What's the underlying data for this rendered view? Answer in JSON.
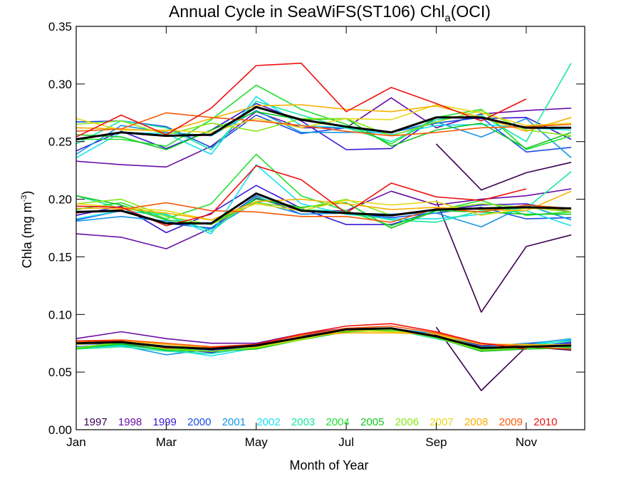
{
  "chart_data": {
    "type": "line",
    "title": {
      "main": "Annual Cycle in SeaWiFS(ST106) Chl",
      "sub": "a",
      "suffix": "(OCI)"
    },
    "xlabel": "Month of Year",
    "ylabel": {
      "main": "Chla (mg m",
      "sup": "-3",
      "suffix": ")"
    },
    "xlim": [
      1,
      12.3
    ],
    "ylim": [
      0,
      0.35
    ],
    "x_ticks": [
      {
        "value": 1,
        "label": "Jan"
      },
      {
        "value": 3,
        "label": "Mar"
      },
      {
        "value": 5,
        "label": "May"
      },
      {
        "value": 7,
        "label": "Jul"
      },
      {
        "value": 9,
        "label": "Sep"
      },
      {
        "value": 11,
        "label": "Nov"
      }
    ],
    "y_ticks": [
      {
        "value": 0.0,
        "label": "0.00"
      },
      {
        "value": 0.05,
        "label": "0.05"
      },
      {
        "value": 0.1,
        "label": "0.10"
      },
      {
        "value": 0.15,
        "label": "0.15"
      },
      {
        "value": 0.2,
        "label": "0.20"
      },
      {
        "value": 0.25,
        "label": "0.25"
      },
      {
        "value": 0.3,
        "label": "0.30"
      },
      {
        "value": 0.35,
        "label": "0.35"
      }
    ],
    "x": [
      1,
      2,
      3,
      4,
      5,
      6,
      7,
      8,
      9,
      10,
      11,
      12
    ],
    "grid": false,
    "legend_position": "bottom, inside plot",
    "series": [
      {
        "name": "1997",
        "color": "#3c0050",
        "upper": [
          null,
          null,
          null,
          null,
          null,
          null,
          null,
          null,
          0.248,
          0.208,
          0.223,
          0.232
        ],
        "middle": [
          null,
          null,
          null,
          null,
          null,
          null,
          null,
          null,
          0.199,
          0.102,
          0.159,
          0.169
        ],
        "lower": [
          null,
          null,
          null,
          null,
          null,
          null,
          null,
          null,
          0.089,
          0.034,
          0.072,
          0.069
        ]
      },
      {
        "name": "1998",
        "color": "#6a0ea8",
        "upper": [
          0.233,
          0.23,
          0.228,
          0.246,
          0.276,
          0.262,
          0.262,
          0.288,
          0.262,
          0.274,
          0.277,
          0.279
        ],
        "middle": [
          0.17,
          0.167,
          0.157,
          0.175,
          0.201,
          0.19,
          0.19,
          0.207,
          0.195,
          0.2,
          0.203,
          0.209
        ],
        "lower": [
          0.079,
          0.085,
          0.079,
          0.075,
          0.075,
          0.083,
          0.088,
          0.088,
          0.082,
          0.073,
          0.074,
          0.079
        ]
      },
      {
        "name": "1999",
        "color": "#3a16d8",
        "upper": [
          0.242,
          0.259,
          0.244,
          0.26,
          0.283,
          0.268,
          0.243,
          0.244,
          0.271,
          0.27,
          0.271,
          0.252
        ],
        "middle": [
          0.186,
          0.194,
          0.171,
          0.188,
          0.212,
          0.192,
          0.178,
          0.178,
          0.19,
          0.195,
          0.196,
          0.189
        ],
        "lower": [
          0.072,
          0.074,
          0.071,
          0.067,
          0.074,
          0.08,
          0.087,
          0.087,
          0.08,
          0.068,
          0.072,
          0.075
        ]
      },
      {
        "name": "2000",
        "color": "#1a4ee8",
        "upper": [
          0.267,
          0.268,
          0.263,
          0.245,
          0.273,
          0.257,
          0.262,
          0.258,
          0.266,
          0.271,
          0.241,
          0.245
        ],
        "middle": [
          0.182,
          0.19,
          0.179,
          0.175,
          0.203,
          0.187,
          0.188,
          0.184,
          0.188,
          0.193,
          0.183,
          0.184
        ],
        "lower": [
          0.074,
          0.075,
          0.072,
          0.069,
          0.072,
          0.081,
          0.087,
          0.087,
          0.081,
          0.07,
          0.071,
          0.076
        ]
      },
      {
        "name": "2001",
        "color": "#1496e8",
        "upper": [
          0.239,
          0.264,
          0.258,
          0.255,
          0.277,
          0.258,
          0.258,
          0.258,
          0.267,
          0.254,
          0.27,
          0.236
        ],
        "middle": [
          0.181,
          0.185,
          0.181,
          0.174,
          0.198,
          0.187,
          0.188,
          0.187,
          0.188,
          0.176,
          0.195,
          0.182
        ],
        "lower": [
          0.072,
          0.073,
          0.065,
          0.07,
          0.073,
          0.08,
          0.086,
          0.088,
          0.083,
          0.072,
          0.075,
          0.078
        ]
      },
      {
        "name": "2002",
        "color": "#18e0f0",
        "upper": [
          0.236,
          0.258,
          0.257,
          0.239,
          0.289,
          0.264,
          0.262,
          0.256,
          0.264,
          0.265,
          0.262,
          0.26
        ],
        "middle": [
          0.183,
          0.19,
          0.186,
          0.17,
          0.23,
          0.196,
          0.187,
          0.183,
          0.183,
          0.187,
          0.19,
          0.177
        ],
        "lower": [
          0.071,
          0.073,
          0.07,
          0.064,
          0.071,
          0.079,
          0.086,
          0.087,
          0.079,
          0.071,
          0.073,
          0.079
        ]
      },
      {
        "name": "2003",
        "color": "#18e6a6",
        "upper": [
          0.248,
          0.268,
          0.262,
          0.243,
          0.285,
          0.273,
          0.262,
          0.25,
          0.269,
          0.273,
          0.25,
          0.318
        ],
        "middle": [
          0.203,
          0.192,
          0.187,
          0.172,
          0.202,
          0.191,
          0.189,
          0.182,
          0.18,
          0.19,
          0.192,
          0.224
        ],
        "lower": [
          0.07,
          0.072,
          0.068,
          0.066,
          0.072,
          0.08,
          0.087,
          0.087,
          0.079,
          0.07,
          0.073,
          0.077
        ]
      },
      {
        "name": "2004",
        "color": "#20e030",
        "upper": [
          0.252,
          0.252,
          0.246,
          0.269,
          0.299,
          0.278,
          0.265,
          0.248,
          0.271,
          0.278,
          0.243,
          0.255
        ],
        "middle": [
          0.191,
          0.197,
          0.183,
          0.196,
          0.239,
          0.203,
          0.19,
          0.177,
          0.19,
          0.199,
          0.186,
          0.189
        ],
        "lower": [
          0.07,
          0.075,
          0.071,
          0.068,
          0.071,
          0.078,
          0.085,
          0.086,
          0.081,
          0.07,
          0.072,
          0.072
        ]
      },
      {
        "name": "2005",
        "color": "#10c820",
        "upper": [
          0.256,
          0.254,
          0.243,
          0.26,
          0.276,
          0.269,
          0.27,
          0.246,
          0.26,
          0.266,
          0.244,
          0.258
        ],
        "middle": [
          0.203,
          0.195,
          0.182,
          0.178,
          0.2,
          0.193,
          0.197,
          0.175,
          0.19,
          0.189,
          0.187,
          0.187
        ],
        "lower": [
          0.071,
          0.074,
          0.069,
          0.068,
          0.07,
          0.078,
          0.085,
          0.087,
          0.08,
          0.068,
          0.07,
          0.071
        ]
      },
      {
        "name": "2006",
        "color": "#88e618",
        "upper": [
          0.265,
          0.268,
          0.256,
          0.266,
          0.259,
          0.27,
          0.27,
          0.255,
          0.267,
          0.277,
          0.26,
          0.255
        ],
        "middle": [
          0.196,
          0.2,
          0.185,
          0.178,
          0.197,
          0.192,
          0.2,
          0.186,
          0.191,
          0.196,
          0.193,
          0.189
        ],
        "lower": [
          0.071,
          0.076,
          0.07,
          0.068,
          0.071,
          0.078,
          0.086,
          0.087,
          0.08,
          0.069,
          0.071,
          0.073
        ]
      },
      {
        "name": "2007",
        "color": "#e8d818",
        "upper": [
          0.27,
          0.26,
          0.26,
          0.258,
          0.27,
          0.262,
          0.27,
          0.269,
          0.282,
          0.275,
          0.264,
          0.266
        ],
        "middle": [
          0.196,
          0.193,
          0.19,
          0.182,
          0.196,
          0.19,
          0.199,
          0.195,
          0.198,
          0.186,
          0.192,
          0.191
        ],
        "lower": [
          0.074,
          0.076,
          0.072,
          0.07,
          0.072,
          0.079,
          0.086,
          0.085,
          0.083,
          0.071,
          0.073,
          0.074
        ]
      },
      {
        "name": "2008",
        "color": "#f8b000",
        "upper": [
          0.262,
          0.261,
          0.259,
          0.27,
          0.281,
          0.282,
          0.278,
          0.276,
          0.281,
          0.271,
          0.259,
          0.271
        ],
        "middle": [
          0.192,
          0.192,
          0.188,
          0.182,
          0.198,
          0.2,
          0.196,
          0.191,
          0.193,
          0.191,
          0.19,
          0.207
        ],
        "lower": [
          0.076,
          0.077,
          0.074,
          0.071,
          0.072,
          0.081,
          0.084,
          0.084,
          0.083,
          0.074,
          0.074,
          0.073
        ]
      },
      {
        "name": "2009",
        "color": "#f85a0a",
        "upper": [
          0.259,
          0.261,
          0.275,
          0.271,
          0.268,
          0.264,
          0.259,
          0.255,
          0.258,
          0.262,
          0.263,
          0.265
        ],
        "middle": [
          0.188,
          0.191,
          0.197,
          0.19,
          0.189,
          0.185,
          0.185,
          0.18,
          0.192,
          0.189,
          0.195,
          0.192
        ],
        "lower": [
          0.077,
          0.078,
          0.075,
          0.072,
          0.074,
          0.082,
          0.088,
          0.09,
          0.084,
          0.075,
          0.072,
          0.07
        ]
      },
      {
        "name": "2010",
        "color": "#ee1010",
        "upper": [
          0.254,
          0.273,
          0.256,
          0.279,
          0.316,
          0.318,
          0.276,
          0.297,
          0.283,
          0.268,
          0.287,
          null
        ],
        "middle": [
          0.194,
          0.193,
          0.177,
          0.187,
          0.229,
          0.217,
          0.188,
          0.214,
          0.202,
          0.199,
          0.209,
          null
        ],
        "lower": [
          0.077,
          0.077,
          0.071,
          0.071,
          0.074,
          0.083,
          0.09,
          0.092,
          0.085,
          0.075,
          0.07,
          null
        ]
      },
      {
        "name": "",
        "color": "#000000",
        "upper": [
          0.252,
          0.258,
          0.255,
          0.256,
          0.28,
          0.269,
          0.263,
          0.258,
          0.271,
          0.271,
          0.262,
          0.262
        ],
        "middle": [
          0.189,
          0.19,
          0.179,
          0.179,
          0.205,
          0.19,
          0.188,
          0.186,
          0.191,
          0.192,
          0.193,
          0.192
        ],
        "lower": [
          0.075,
          0.076,
          0.072,
          0.07,
          0.073,
          0.08,
          0.087,
          0.088,
          0.081,
          0.071,
          0.072,
          0.073
        ]
      }
    ]
  }
}
